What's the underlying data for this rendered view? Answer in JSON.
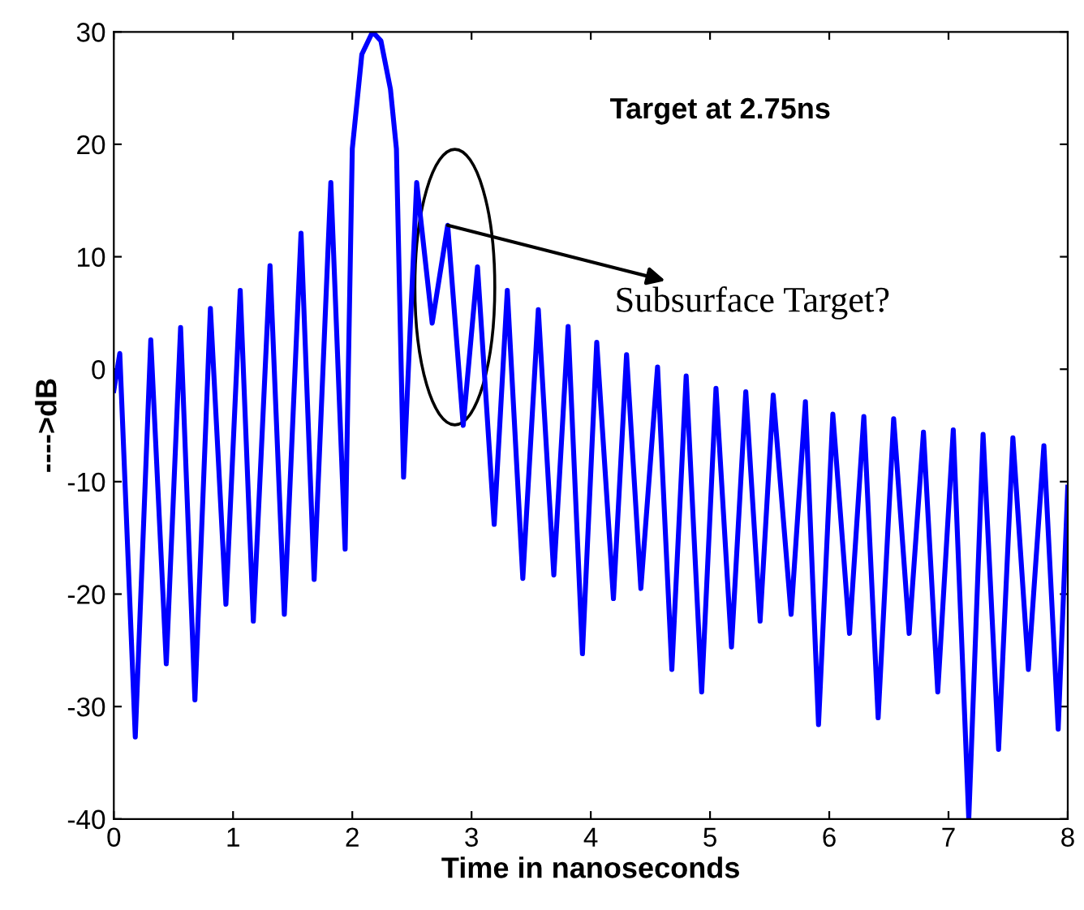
{
  "chart_data": {
    "type": "line",
    "xlabel": "Time in nanoseconds",
    "ylabel": "---->dB",
    "annotations": [
      "Target at 2.75ns",
      {
        "text": "Subsurface Target?",
        "x": 2.8,
        "y": 12.8
      }
    ],
    "series": [
      {
        "color": "#0000ff",
        "x": [
          0,
          0.05,
          0.18,
          0.31,
          0.44,
          0.56,
          0.68,
          0.81,
          0.94,
          1.06,
          1.17,
          1.31,
          1.43,
          1.57,
          1.68,
          1.82,
          1.94,
          2.0,
          2.08,
          2.17,
          2.24,
          2.32,
          2.37,
          2.43,
          2.54,
          2.67,
          2.8,
          2.93,
          3.05,
          3.19,
          3.3,
          3.43,
          3.56,
          3.69,
          3.81,
          3.93,
          4.05,
          4.19,
          4.3,
          4.42,
          4.56,
          4.68,
          4.8,
          4.93,
          5.05,
          5.18,
          5.3,
          5.42,
          5.53,
          5.68,
          5.8,
          5.91,
          6.03,
          6.17,
          6.29,
          6.41,
          6.54,
          6.67,
          6.79,
          6.91,
          7.04,
          7.17,
          7.29,
          7.42,
          7.54,
          7.67,
          7.8,
          7.92,
          8.0
        ],
        "values": [
          -1.9,
          1.4,
          -32.7,
          2.6,
          -26.2,
          3.7,
          -29.4,
          5.4,
          -20.9,
          7.0,
          -22.4,
          9.2,
          -21.8,
          12.1,
          -18.7,
          16.6,
          -16.0,
          19.6,
          28.0,
          30,
          29.2,
          24.9,
          19.6,
          -9.6,
          16.6,
          4.1,
          12.8,
          -5.0,
          9.1,
          -13.8,
          7.0,
          -18.6,
          5.3,
          -18.3,
          3.8,
          -25.3,
          2.4,
          -20.4,
          1.3,
          -19.5,
          0.2,
          -26.7,
          -0.6,
          -28.7,
          -1.7,
          -24.7,
          -2.0,
          -22.4,
          -2.3,
          -21.8,
          -2.9,
          -31.6,
          -4.0,
          -23.5,
          -4.2,
          -31.0,
          -4.4,
          -23.5,
          -5.6,
          -28.7,
          -5.4,
          -40,
          -5.8,
          -33.8,
          -6.1,
          -26.7,
          -6.8,
          -32.0,
          -10.5
        ]
      }
    ],
    "xlim": [
      0,
      8
    ],
    "xticks": [
      0,
      1,
      2,
      3,
      4,
      5,
      6,
      7,
      8
    ],
    "ylim": [
      -40,
      30
    ],
    "yticks": [
      -40,
      -30,
      -20,
      -10,
      0,
      10,
      20,
      30
    ],
    "grid": false,
    "legend": false,
    "marker": "none",
    "line_style": "solid"
  }
}
